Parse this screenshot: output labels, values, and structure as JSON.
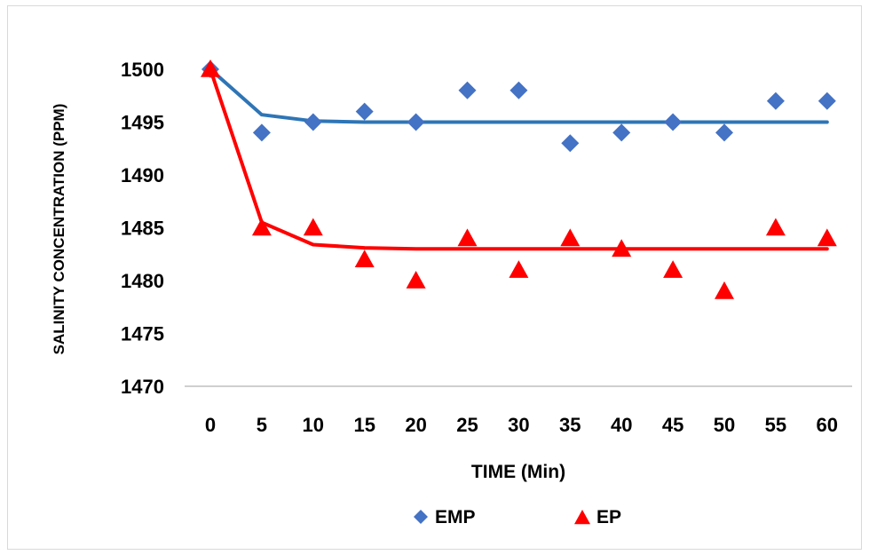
{
  "chart_data": {
    "type": "scatter",
    "title": "",
    "xlabel": "TIME (Min)",
    "ylabel": "SALINITY CONCENTRATION (PPM)",
    "x": [
      0,
      5,
      10,
      15,
      20,
      25,
      30,
      35,
      40,
      45,
      50,
      55,
      60
    ],
    "xlim": [
      0,
      60
    ],
    "ylim": [
      1470,
      1500
    ],
    "yticks": [
      1470,
      1475,
      1480,
      1485,
      1490,
      1495,
      1500
    ],
    "grid": false,
    "legend_position": "bottom",
    "series": [
      {
        "name": "EMP",
        "marker": "diamond",
        "color": "#4472C4",
        "values": [
          1500,
          1494,
          1495,
          1496,
          1495,
          1498,
          1498,
          1493,
          1494,
          1495,
          1494,
          1497,
          1497
        ],
        "trend_color": "#2E75B6",
        "trend_values": [
          1500,
          1495.7,
          1495.1,
          1495.0,
          1495.0,
          1495.0,
          1495.0,
          1495.0,
          1495.0,
          1495.0,
          1495.0,
          1495.0,
          1495.0
        ]
      },
      {
        "name": "EP",
        "marker": "triangle",
        "color": "#FF0000",
        "values": [
          1500,
          1485,
          1485,
          1482,
          1480,
          1484,
          1481,
          1484,
          1483,
          1481,
          1479,
          1485,
          1484
        ],
        "trend_color": "#FF0000",
        "trend_values": [
          1500,
          1485.5,
          1483.4,
          1483.1,
          1483.0,
          1483.0,
          1483.0,
          1483.0,
          1483.0,
          1483.0,
          1483.0,
          1483.0,
          1483.0
        ]
      }
    ]
  }
}
